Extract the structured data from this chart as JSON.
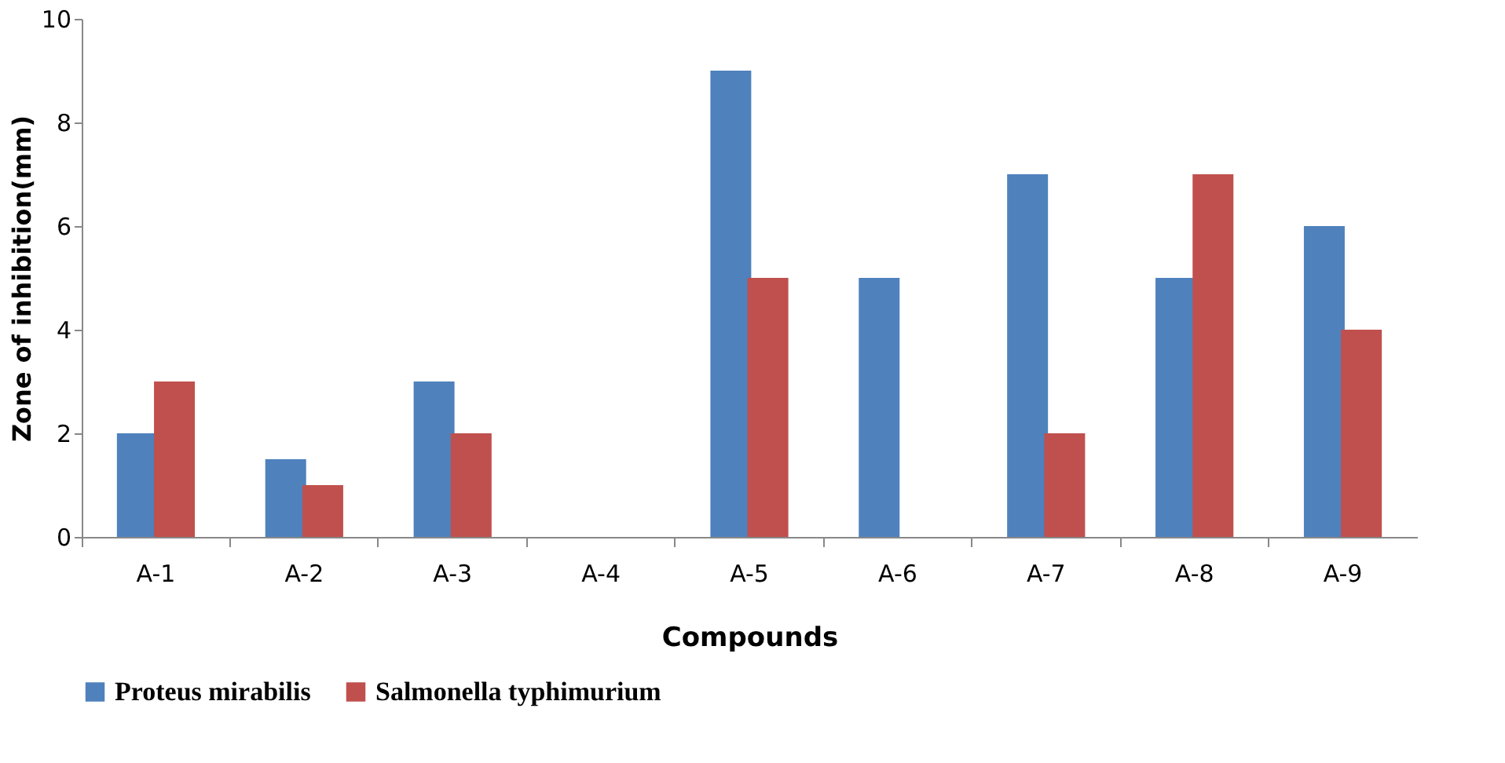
{
  "chart_data": {
    "type": "bar",
    "xlabel": "Compounds",
    "ylabel": "Zone of inhibition(mm)",
    "categories": [
      "A-1",
      "A-2",
      "A-3",
      "A-4",
      "A-5",
      "A-6",
      "A-7",
      "A-8",
      "A-9"
    ],
    "series": [
      {
        "name": "Proteus mirabilis",
        "color": "#4f81bd",
        "values": [
          2,
          1.5,
          3,
          0,
          9,
          5,
          7,
          5,
          6
        ]
      },
      {
        "name": "Salmonella typhimurium",
        "color": "#c0504d",
        "values": [
          3,
          1,
          2,
          0,
          5,
          0,
          2,
          7,
          4
        ]
      }
    ],
    "ylim": [
      0,
      10
    ],
    "yticks": [
      0,
      2,
      4,
      6,
      8,
      10
    ],
    "grid": false,
    "legend": "bottom"
  }
}
